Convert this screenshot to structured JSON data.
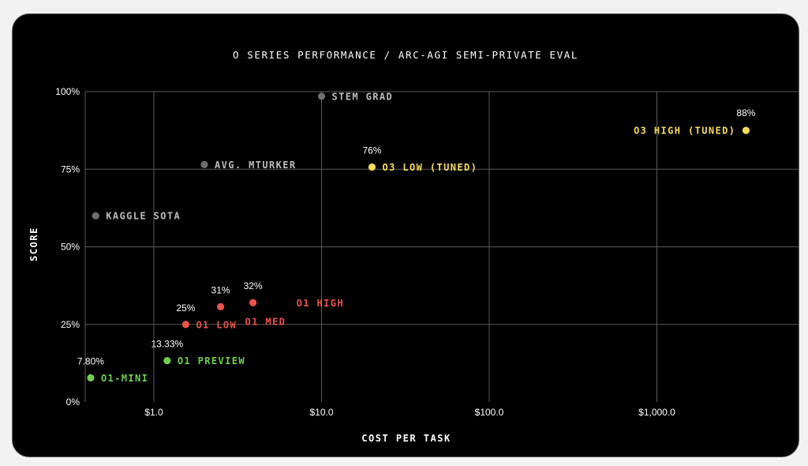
{
  "chart_data": {
    "type": "scatter",
    "title": "O SERIES PERFORMANCE / ARC-AGI SEMI-PRIVATE EVAL",
    "xlabel": "COST PER TASK",
    "ylabel": "SCORE",
    "x_scale": "log",
    "xlim": [
      0.4,
      4000
    ],
    "ylim": [
      0,
      100
    ],
    "grid": true,
    "x_ticks": [
      {
        "value": 1,
        "label": "$1.0"
      },
      {
        "value": 10,
        "label": "$10.0"
      },
      {
        "value": 100,
        "label": "$100.0"
      },
      {
        "value": 1000,
        "label": "$1,000.0"
      }
    ],
    "y_ticks": [
      {
        "value": 0,
        "label": "0%"
      },
      {
        "value": 25,
        "label": "25%"
      },
      {
        "value": 50,
        "label": "50%"
      },
      {
        "value": 75,
        "label": "75%"
      },
      {
        "value": 100,
        "label": "100%"
      }
    ],
    "colors": {
      "o3": "#f5dc5a",
      "o1": "#e8544a",
      "mini": "#6fcf4e",
      "human": "#6e6e6e",
      "human_text": "#bdbdbd",
      "value_text": "#ffffff",
      "grid": "#5a5a5a"
    },
    "points": [
      {
        "label": "O3 HIGH (TUNED)",
        "x": 3400,
        "y": 87.5,
        "value_label": "88%",
        "color_key": "o3"
      },
      {
        "label": "O3 LOW (TUNED)",
        "x": 20,
        "y": 75.7,
        "value_label": "76%",
        "color_key": "o3"
      },
      {
        "label": "STEM GRAD",
        "x": 10,
        "y": 98.5,
        "value_label": "",
        "color_key": "human"
      },
      {
        "label": "AVG. MTURKER",
        "x": 2,
        "y": 76.5,
        "value_label": "",
        "color_key": "human"
      },
      {
        "label": "KAGGLE SOTA",
        "x": 0.45,
        "y": 60,
        "value_label": "",
        "color_key": "human"
      },
      {
        "label": "O1 HIGH",
        "x": 3.9,
        "y": 32,
        "value_label": "32%",
        "color_key": "o1"
      },
      {
        "label": "O1 MED",
        "x": 2.5,
        "y": 30.7,
        "value_label": "31%",
        "color_key": "o1"
      },
      {
        "label": "O1 LOW",
        "x": 1.55,
        "y": 25,
        "value_label": "25%",
        "color_key": "o1"
      },
      {
        "label": "O1 PREVIEW",
        "x": 1.2,
        "y": 13.33,
        "value_label": "13.33%",
        "color_key": "mini"
      },
      {
        "label": "O1-MINI",
        "x": 0.42,
        "y": 7.8,
        "value_label": "7.80%",
        "color_key": "mini"
      }
    ]
  }
}
